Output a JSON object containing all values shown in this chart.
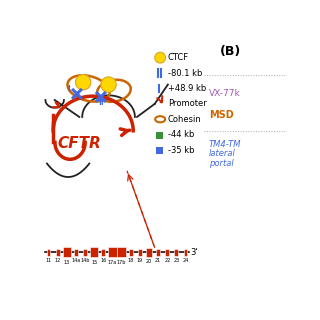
{
  "background_color": "#ffffff",
  "title_B": "(B)",
  "cftr_label": "CFTR",
  "cftr_color": "#CC2200",
  "exon_labels": [
    "11",
    "12",
    "13",
    "14a",
    "14b",
    "15",
    "16",
    "17a",
    "17b",
    "18",
    "19",
    "20",
    "21",
    "22",
    "23",
    "24"
  ],
  "exon_sizes": [
    1,
    1,
    3,
    1,
    1,
    3,
    1,
    3,
    3,
    1,
    1,
    2,
    1,
    1,
    1,
    1
  ],
  "exon_color": "#CC2200",
  "line_color": "#111111",
  "prime3_label": "3'",
  "dotted_line_color": "#CC2200",
  "ctcf_color": "#FFD700",
  "ctcf_edge_color": "#DAA520",
  "cohesin_color": "#CC6600",
  "blue_marker_color": "#4169E1",
  "green_sq_color": "#3A8F3A",
  "blue_sq_color": "#4169E1",
  "vx77_color": "#9B59B6",
  "vx77_label": "VX-77k",
  "msd_color": "#CC6600",
  "msd_label": "MSD",
  "tm4_color": "#4169E1",
  "tm4_label": "TM4-TM",
  "lateral_label": "lateral",
  "portal_label": "portal",
  "black_strand_color": "#222222"
}
